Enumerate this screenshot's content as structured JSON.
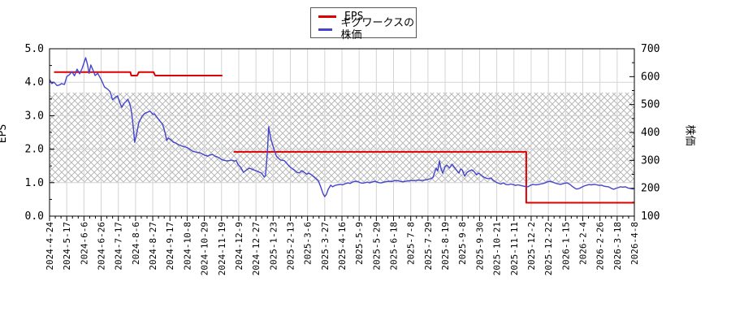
{
  "legend": {
    "items": [
      {
        "label": "EPS",
        "color": "#dd0000"
      },
      {
        "label": "ギグワークスの株価",
        "color": "#4444cc"
      }
    ]
  },
  "axes": {
    "left_title": "EPS",
    "right_title": "株価"
  },
  "colors": {
    "eps_line": "#dd0000",
    "stock_line": "#4444cc",
    "grid": "#d4d4d4",
    "hatch": "#b8b8b8",
    "border": "#000000",
    "background": "#ffffff"
  },
  "chart_data": {
    "type": "line",
    "title": "",
    "legend_position": "top-center",
    "grid": true,
    "x_ticks": [
      "2024-4-24",
      "2024-5-17",
      "2024-6-6",
      "2024-6-26",
      "2024-7-17",
      "2024-8-6",
      "2024-8-27",
      "2024-9-17",
      "2024-10-8",
      "2024-10-29",
      "2024-11-19",
      "2024-12-9",
      "2024-12-27",
      "2025-1-23",
      "2025-2-13",
      "2025-3-6",
      "2025-3-27",
      "2025-4-16",
      "2025-5-9",
      "2025-5-29",
      "2025-6-18",
      "2025-7-8",
      "2025-7-29",
      "2025-8-19",
      "2025-9-8",
      "2025-9-30",
      "2025-10-21",
      "2025-11-11",
      "2025-12-2",
      "2025-12-22",
      "2026-1-15",
      "2026-2-4",
      "2026-2-26",
      "2026-3-18",
      "2026-4-8"
    ],
    "y_left": {
      "label": "EPS",
      "min": 0,
      "max": 5,
      "tick_labels": [
        "0.0",
        "1.0",
        "2.0",
        "3.0",
        "4.0",
        "5.0"
      ],
      "minor_step": 0.5
    },
    "y_right": {
      "label": "株価",
      "min": 100,
      "max": 700,
      "tick_labels": [
        "100",
        "200",
        "300",
        "400",
        "500",
        "600",
        "700"
      ],
      "minor_step": 50
    },
    "grid_eps_levels": [
      1,
      2,
      3,
      4
    ],
    "hatch_band": {
      "axis": "left",
      "from": 1.0,
      "to": 3.69,
      "right_axis_equivalent": [
        220,
        543
      ],
      "style": "crosshatch"
    },
    "series": [
      {
        "name": "EPS",
        "axis": "left",
        "color": "#dd0000",
        "width": 2,
        "segments": [
          [
            [
              "2024-4-30",
              4.3
            ],
            [
              "2024-7-31",
              4.3
            ],
            [
              "2024-8-1",
              4.2
            ],
            [
              "2024-8-8",
              4.2
            ],
            [
              "2024-8-10",
              4.3
            ],
            [
              "2024-8-28",
              4.3
            ],
            [
              "2024-8-30",
              4.2
            ],
            [
              "2024-11-20",
              4.2
            ]
          ],
          [
            [
              "2024-12-3",
              1.92
            ],
            [
              "2025-11-26",
              1.92
            ],
            [
              "2025-11-26",
              0.4
            ],
            [
              "2026-4-8",
              0.4
            ]
          ]
        ]
      },
      {
        "name": "ギグワークスの株価",
        "axis": "right",
        "color": "#4444cc",
        "width": 1.4,
        "points": [
          [
            "2024-4-24",
            590
          ],
          [
            "2024-4-27",
            575
          ],
          [
            "2024-4-30",
            580
          ],
          [
            "2024-5-4",
            568
          ],
          [
            "2024-5-7",
            570
          ],
          [
            "2024-5-10",
            575
          ],
          [
            "2024-5-14",
            572
          ],
          [
            "2024-5-17",
            600
          ],
          [
            "2024-5-20",
            607
          ],
          [
            "2024-5-23",
            618
          ],
          [
            "2024-5-26",
            603
          ],
          [
            "2024-5-29",
            627
          ],
          [
            "2024-6-1",
            610
          ],
          [
            "2024-6-4",
            630
          ],
          [
            "2024-6-8",
            668
          ],
          [
            "2024-6-10",
            645
          ],
          [
            "2024-6-12",
            612
          ],
          [
            "2024-6-14",
            642
          ],
          [
            "2024-6-17",
            620
          ],
          [
            "2024-6-19",
            604
          ],
          [
            "2024-6-22",
            612
          ],
          [
            "2024-6-26",
            590
          ],
          [
            "2024-6-30",
            563
          ],
          [
            "2024-7-4",
            555
          ],
          [
            "2024-7-7",
            546
          ],
          [
            "2024-7-10",
            517
          ],
          [
            "2024-7-13",
            525
          ],
          [
            "2024-7-16",
            531
          ],
          [
            "2024-7-19",
            505
          ],
          [
            "2024-7-21",
            490
          ],
          [
            "2024-7-24",
            505
          ],
          [
            "2024-7-26",
            511
          ],
          [
            "2024-7-28",
            519
          ],
          [
            "2024-7-30",
            505
          ],
          [
            "2024-8-1",
            480
          ],
          [
            "2024-8-3",
            430
          ],
          [
            "2024-8-5",
            365
          ],
          [
            "2024-8-7",
            390
          ],
          [
            "2024-8-10",
            435
          ],
          [
            "2024-8-14",
            458
          ],
          [
            "2024-8-17",
            468
          ],
          [
            "2024-8-20",
            472
          ],
          [
            "2024-8-24",
            476
          ],
          [
            "2024-8-27",
            465
          ],
          [
            "2024-8-29",
            467
          ],
          [
            "2024-9-1",
            455
          ],
          [
            "2024-9-4",
            444
          ],
          [
            "2024-9-8",
            429
          ],
          [
            "2024-9-11",
            400
          ],
          [
            "2024-9-13",
            371
          ],
          [
            "2024-9-15",
            380
          ],
          [
            "2024-9-18",
            374
          ],
          [
            "2024-9-21",
            365
          ],
          [
            "2024-9-24",
            362
          ],
          [
            "2024-9-27",
            357
          ],
          [
            "2024-9-30",
            353
          ],
          [
            "2024-10-3",
            350
          ],
          [
            "2024-10-6",
            348
          ],
          [
            "2024-10-9",
            344
          ],
          [
            "2024-10-12",
            338
          ],
          [
            "2024-10-15",
            332
          ],
          [
            "2024-10-18",
            330
          ],
          [
            "2024-10-21",
            328
          ],
          [
            "2024-10-24",
            327
          ],
          [
            "2024-10-27",
            322
          ],
          [
            "2024-10-30",
            318
          ],
          [
            "2024-11-2",
            315
          ],
          [
            "2024-11-5",
            319
          ],
          [
            "2024-11-8",
            321
          ],
          [
            "2024-11-11",
            315
          ],
          [
            "2024-11-14",
            312
          ],
          [
            "2024-11-17",
            307
          ],
          [
            "2024-11-19",
            303
          ],
          [
            "2024-11-22",
            300
          ],
          [
            "2024-11-25",
            298
          ],
          [
            "2024-11-28",
            299
          ],
          [
            "2024-12-1",
            301
          ],
          [
            "2024-12-4",
            297
          ],
          [
            "2024-12-6",
            300
          ],
          [
            "2024-12-8",
            286
          ],
          [
            "2024-12-11",
            275
          ],
          [
            "2024-12-14",
            257
          ],
          [
            "2024-12-17",
            265
          ],
          [
            "2024-12-20",
            272
          ],
          [
            "2024-12-23",
            268
          ],
          [
            "2024-12-25",
            265
          ],
          [
            "2024-12-28",
            262
          ],
          [
            "2025-1-1",
            258
          ],
          [
            "2025-1-5",
            254
          ],
          [
            "2025-1-9",
            240
          ],
          [
            "2025-1-11",
            245
          ],
          [
            "2025-1-14",
            330
          ],
          [
            "2025-1-16",
            420
          ],
          [
            "2025-1-19",
            380
          ],
          [
            "2025-1-21",
            365
          ],
          [
            "2025-1-24",
            340
          ],
          [
            "2025-1-27",
            315
          ],
          [
            "2025-1-30",
            306
          ],
          [
            "2025-2-1",
            301
          ],
          [
            "2025-2-4",
            300
          ],
          [
            "2025-2-6",
            298
          ],
          [
            "2025-2-9",
            288
          ],
          [
            "2025-2-12",
            278
          ],
          [
            "2025-2-15",
            271
          ],
          [
            "2025-2-18",
            265
          ],
          [
            "2025-2-21",
            257
          ],
          [
            "2025-2-24",
            255
          ],
          [
            "2025-2-27",
            263
          ],
          [
            "2025-3-2",
            257
          ],
          [
            "2025-3-5",
            250
          ],
          [
            "2025-3-7",
            254
          ],
          [
            "2025-3-10",
            250
          ],
          [
            "2025-3-13",
            243
          ],
          [
            "2025-3-16",
            236
          ],
          [
            "2025-3-19",
            228
          ],
          [
            "2025-3-22",
            205
          ],
          [
            "2025-3-25",
            180
          ],
          [
            "2025-3-27",
            170
          ],
          [
            "2025-3-29",
            178
          ],
          [
            "2025-3-31",
            196
          ],
          [
            "2025-4-3",
            211
          ],
          [
            "2025-4-5",
            205
          ],
          [
            "2025-4-8",
            210
          ],
          [
            "2025-4-11",
            212
          ],
          [
            "2025-4-14",
            214
          ],
          [
            "2025-4-17",
            212
          ],
          [
            "2025-4-20",
            216
          ],
          [
            "2025-4-24",
            219
          ],
          [
            "2025-4-27",
            217
          ],
          [
            "2025-4-30",
            222
          ],
          [
            "2025-5-3",
            225
          ],
          [
            "2025-5-7",
            224
          ],
          [
            "2025-5-10",
            220
          ],
          [
            "2025-5-13",
            218
          ],
          [
            "2025-5-16",
            220
          ],
          [
            "2025-5-19",
            222
          ],
          [
            "2025-5-21",
            219
          ],
          [
            "2025-5-24",
            222
          ],
          [
            "2025-5-27",
            225
          ],
          [
            "2025-5-29",
            223
          ],
          [
            "2025-6-1",
            220
          ],
          [
            "2025-6-4",
            219
          ],
          [
            "2025-6-7",
            222
          ],
          [
            "2025-6-10",
            224
          ],
          [
            "2025-6-13",
            225
          ],
          [
            "2025-6-16",
            224
          ],
          [
            "2025-6-18",
            226
          ],
          [
            "2025-6-21",
            228
          ],
          [
            "2025-6-24",
            226
          ],
          [
            "2025-6-27",
            224
          ],
          [
            "2025-6-29",
            223
          ],
          [
            "2025-7-2",
            225
          ],
          [
            "2025-7-5",
            226
          ],
          [
            "2025-7-8",
            228
          ],
          [
            "2025-7-11",
            227
          ],
          [
            "2025-7-14",
            228
          ],
          [
            "2025-7-17",
            229
          ],
          [
            "2025-7-20",
            228
          ],
          [
            "2025-7-23",
            228
          ],
          [
            "2025-7-26",
            230
          ],
          [
            "2025-7-29",
            232
          ],
          [
            "2025-8-1",
            234
          ],
          [
            "2025-8-4",
            238
          ],
          [
            "2025-8-6",
            255
          ],
          [
            "2025-8-8",
            272
          ],
          [
            "2025-8-10",
            262
          ],
          [
            "2025-8-12",
            298
          ],
          [
            "2025-8-14",
            270
          ],
          [
            "2025-8-16",
            254
          ],
          [
            "2025-8-19",
            278
          ],
          [
            "2025-8-21",
            283
          ],
          [
            "2025-8-24",
            272
          ],
          [
            "2025-8-27",
            286
          ],
          [
            "2025-8-30",
            274
          ],
          [
            "2025-9-2",
            262
          ],
          [
            "2025-9-4",
            254
          ],
          [
            "2025-9-6",
            269
          ],
          [
            "2025-9-8",
            265
          ],
          [
            "2025-9-11",
            243
          ],
          [
            "2025-9-14",
            257
          ],
          [
            "2025-9-17",
            262
          ],
          [
            "2025-9-20",
            266
          ],
          [
            "2025-9-23",
            260
          ],
          [
            "2025-9-26",
            248
          ],
          [
            "2025-9-29",
            254
          ],
          [
            "2025-10-2",
            247
          ],
          [
            "2025-10-5",
            240
          ],
          [
            "2025-10-8",
            236
          ],
          [
            "2025-10-11",
            234
          ],
          [
            "2025-10-14",
            237
          ],
          [
            "2025-10-17",
            228
          ],
          [
            "2025-10-20",
            222
          ],
          [
            "2025-10-23",
            218
          ],
          [
            "2025-10-26",
            215
          ],
          [
            "2025-10-29",
            219
          ],
          [
            "2025-11-1",
            214
          ],
          [
            "2025-11-4",
            212
          ],
          [
            "2025-11-7",
            215
          ],
          [
            "2025-11-10",
            213
          ],
          [
            "2025-11-13",
            210
          ],
          [
            "2025-11-16",
            212
          ],
          [
            "2025-11-19",
            210
          ],
          [
            "2025-11-22",
            208
          ],
          [
            "2025-11-25",
            206
          ],
          [
            "2025-11-28",
            205
          ],
          [
            "2025-12-1",
            210
          ],
          [
            "2025-12-4",
            214
          ],
          [
            "2025-12-7",
            212
          ],
          [
            "2025-12-10",
            213
          ],
          [
            "2025-12-13",
            215
          ],
          [
            "2025-12-16",
            217
          ],
          [
            "2025-12-19",
            220
          ],
          [
            "2025-12-21",
            223
          ],
          [
            "2025-12-24",
            225
          ],
          [
            "2025-12-28",
            222
          ],
          [
            "2026-1-1",
            218
          ],
          [
            "2026-1-4",
            216
          ],
          [
            "2026-1-8",
            214
          ],
          [
            "2026-1-11",
            216
          ],
          [
            "2026-1-14",
            218
          ],
          [
            "2026-1-17",
            219
          ],
          [
            "2026-1-20",
            214
          ],
          [
            "2026-1-23",
            206
          ],
          [
            "2026-1-26",
            200
          ],
          [
            "2026-1-28",
            197
          ],
          [
            "2026-1-31",
            199
          ],
          [
            "2026-2-3",
            204
          ],
          [
            "2026-2-6",
            208
          ],
          [
            "2026-2-9",
            211
          ],
          [
            "2026-2-12",
            213
          ],
          [
            "2026-2-15",
            212
          ],
          [
            "2026-2-19",
            214
          ],
          [
            "2026-2-22",
            212
          ],
          [
            "2026-2-25",
            210
          ],
          [
            "2026-2-28",
            211
          ],
          [
            "2026-3-2",
            208
          ],
          [
            "2026-3-5",
            206
          ],
          [
            "2026-3-8",
            205
          ],
          [
            "2026-3-11",
            200
          ],
          [
            "2026-3-14",
            196
          ],
          [
            "2026-3-16",
            199
          ],
          [
            "2026-3-19",
            202
          ],
          [
            "2026-3-22",
            205
          ],
          [
            "2026-3-25",
            204
          ],
          [
            "2026-3-28",
            205
          ],
          [
            "2026-3-31",
            201
          ],
          [
            "2026-4-3",
            199
          ],
          [
            "2026-4-6",
            197
          ],
          [
            "2026-4-8",
            199
          ]
        ]
      }
    ]
  }
}
